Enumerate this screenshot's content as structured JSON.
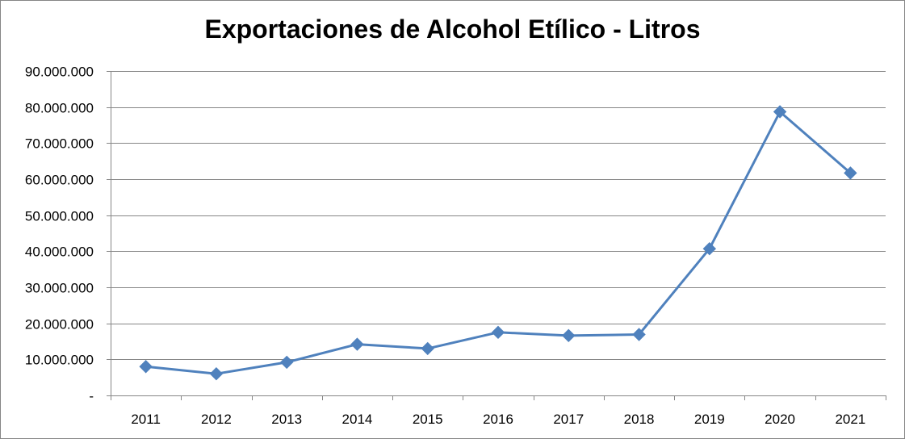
{
  "chart_data": {
    "type": "line",
    "title": "Exportaciones de Alcohol Etílico - Litros",
    "xlabel": "",
    "ylabel": "",
    "categories": [
      "2011",
      "2012",
      "2013",
      "2014",
      "2015",
      "2016",
      "2017",
      "2018",
      "2019",
      "2020",
      "2021"
    ],
    "series": [
      {
        "values": [
          8000000,
          6000000,
          9200000,
          14200000,
          13000000,
          17500000,
          16600000,
          16900000,
          40700000,
          78700000,
          61700000
        ],
        "color": "#4F81BD",
        "marker": "diamond"
      }
    ],
    "ylim": [
      0,
      90000000
    ],
    "yticks": [
      0,
      10000000,
      20000000,
      30000000,
      40000000,
      50000000,
      60000000,
      70000000,
      80000000,
      90000000
    ],
    "ytick_labels": [
      "-",
      "10.000.000",
      "20.000.000",
      "30.000.000",
      "40.000.000",
      "50.000.000",
      "60.000.000",
      "70.000.000",
      "80.000.000",
      "90.000.000"
    ],
    "grid": true,
    "legend": "none"
  }
}
